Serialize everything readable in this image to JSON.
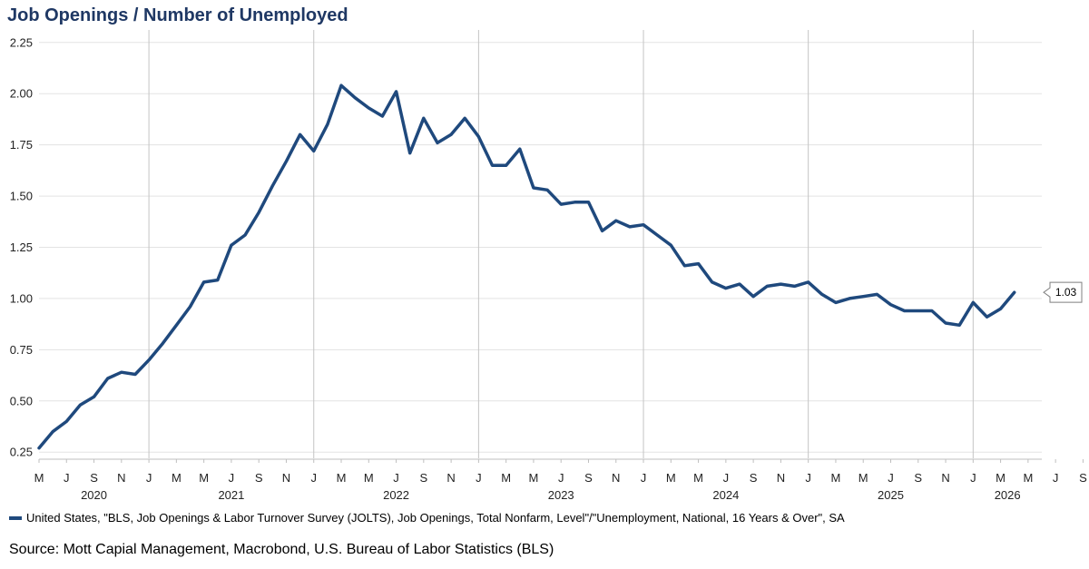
{
  "title": "Job Openings / Number of Unemployed",
  "legend_label": "United States, \"BLS, Job Openings & Labor Turnover Survey (JOLTS), Job Openings, Total Nonfarm, Level\"/\"Unemployment, National, 16 Years & Over\", SA",
  "source": "Source: Mott Capial Management, Macrobond, U.S. Bureau of Labor Statistics (BLS)",
  "chart_data": {
    "type": "line",
    "series_color": "#1f497d",
    "ylim": [
      0.22,
      2.28
    ],
    "y_ticks": [
      "0.25",
      "0.50",
      "0.75",
      "1.00",
      "1.25",
      "1.50",
      "1.75",
      "2.00",
      "2.25"
    ],
    "x_range": [
      "2020-05",
      "2026-06"
    ],
    "x_month_ticks": [
      "M",
      "J",
      "S",
      "N",
      "J",
      "M",
      "M",
      "J",
      "S",
      "N",
      "J",
      "M",
      "M",
      "J",
      "S",
      "N",
      "J",
      "M",
      "M",
      "J",
      "S",
      "N",
      "J",
      "M",
      "M",
      "J",
      "S",
      "N",
      "J",
      "M",
      "M",
      "J",
      "S",
      "N",
      "J",
      "M",
      "M",
      "J",
      "S",
      "N",
      "J",
      "M",
      "M",
      "J"
    ],
    "year_labels": [
      "2020",
      "2021",
      "2022",
      "2023",
      "2024",
      "2025",
      "2026"
    ],
    "year_gridlines": [
      "2021-01",
      "2022-01",
      "2023-01",
      "2024-01",
      "2025-01",
      "2026-01"
    ],
    "last_value_label": "1.03",
    "series": [
      {
        "x": [
          "2020-05",
          "2020-06",
          "2020-07",
          "2020-08",
          "2020-09",
          "2020-10",
          "2020-11",
          "2020-12",
          "2021-01",
          "2021-02",
          "2021-03",
          "2021-04",
          "2021-05",
          "2021-06",
          "2021-07",
          "2021-08",
          "2021-09",
          "2021-10",
          "2021-11",
          "2021-12",
          "2022-01",
          "2022-02",
          "2022-03",
          "2022-04",
          "2022-05",
          "2022-06",
          "2022-07",
          "2022-08",
          "2022-09",
          "2022-10",
          "2022-11",
          "2022-12",
          "2023-01",
          "2023-02",
          "2023-03",
          "2023-04",
          "2023-05",
          "2023-06",
          "2023-07",
          "2023-08",
          "2023-09",
          "2023-10",
          "2023-11",
          "2023-12",
          "2024-01",
          "2024-02",
          "2024-03",
          "2024-04",
          "2024-05",
          "2024-06",
          "2024-07",
          "2024-08",
          "2024-09",
          "2024-10",
          "2024-11",
          "2024-12",
          "2025-01",
          "2025-02",
          "2025-03",
          "2025-04",
          "2025-05",
          "2025-06",
          "2025-07",
          "2025-08",
          "2025-09",
          "2025-10",
          "2025-11",
          "2025-12",
          "2026-01",
          "2026-02",
          "2026-03",
          "2026-04"
        ],
        "values": [
          0.27,
          0.35,
          0.4,
          0.48,
          0.52,
          0.61,
          0.64,
          0.63,
          0.7,
          0.78,
          0.87,
          0.96,
          1.08,
          1.09,
          1.26,
          1.31,
          1.42,
          1.55,
          1.67,
          1.8,
          1.72,
          1.85,
          2.04,
          1.98,
          1.93,
          1.89,
          2.01,
          1.71,
          1.88,
          1.76,
          1.8,
          1.88,
          1.79,
          1.65,
          1.65,
          1.73,
          1.54,
          1.53,
          1.46,
          1.47,
          1.47,
          1.33,
          1.38,
          1.35,
          1.36,
          1.31,
          1.26,
          1.16,
          1.17,
          1.08,
          1.05,
          1.07,
          1.01,
          1.06,
          1.07,
          1.06,
          1.08,
          1.02,
          0.98,
          1.0,
          1.01,
          1.02,
          0.97,
          0.94,
          0.94,
          0.94,
          0.88,
          0.87,
          0.98,
          0.91,
          0.95,
          1.03
        ]
      }
    ]
  }
}
